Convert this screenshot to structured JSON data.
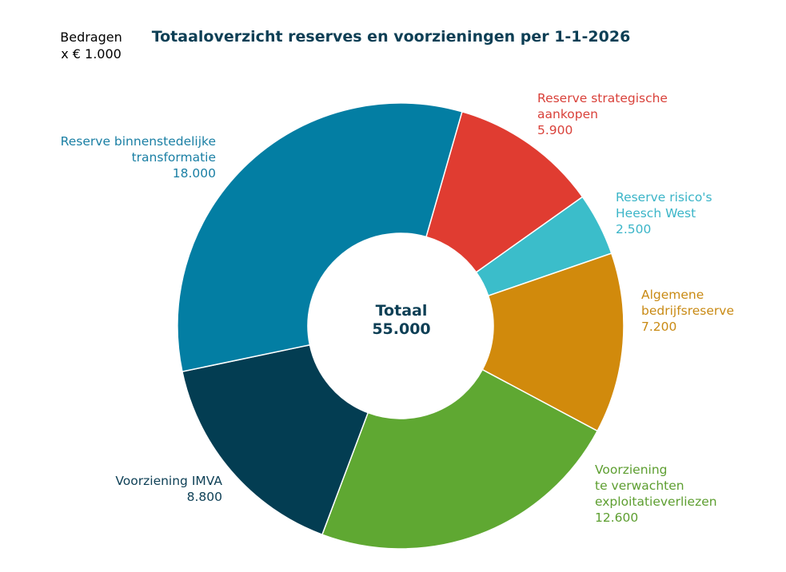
{
  "chart_data": {
    "type": "pie",
    "donut": true,
    "title": "Totaaloverzicht reserves en voorzieningen per 1-1-2026",
    "unit_label": [
      "Bedragen",
      "x € 1.000"
    ],
    "center_label": {
      "line1": "Totaal",
      "line2": "55.000"
    },
    "slices": [
      {
        "name_lines": [
          "Reserve strategische",
          "aankopen"
        ],
        "value": 5900,
        "value_label": "5.900",
        "color": "#e03c31",
        "label_color": "#d9413a"
      },
      {
        "name_lines": [
          "Reserve risico's",
          "Heesch West"
        ],
        "value": 2500,
        "value_label": "2.500",
        "color": "#3bbdca",
        "label_color": "#3bb5c8"
      },
      {
        "name_lines": [
          "Algemene",
          "bedrijfsreserve"
        ],
        "value": 7200,
        "value_label": "7.200",
        "color": "#d18a0c",
        "label_color": "#c98a14"
      },
      {
        "name_lines": [
          "Voorziening",
          "te verwachten",
          "exploitatieverliezen"
        ],
        "value": 12600,
        "value_label": "12.600",
        "color": "#5fa832",
        "label_color": "#5d9e30"
      },
      {
        "name_lines": [
          "Voorziening IMVA"
        ],
        "value": 8800,
        "value_label": "8.800",
        "color": "#033d52",
        "label_color": "#0d3f55"
      },
      {
        "name_lines": [
          "Reserve binnenstedelijke",
          "transformatie"
        ],
        "value": 18000,
        "value_label": "18.000",
        "color": "#037ea3",
        "label_color": "#1a7fa4"
      }
    ]
  }
}
